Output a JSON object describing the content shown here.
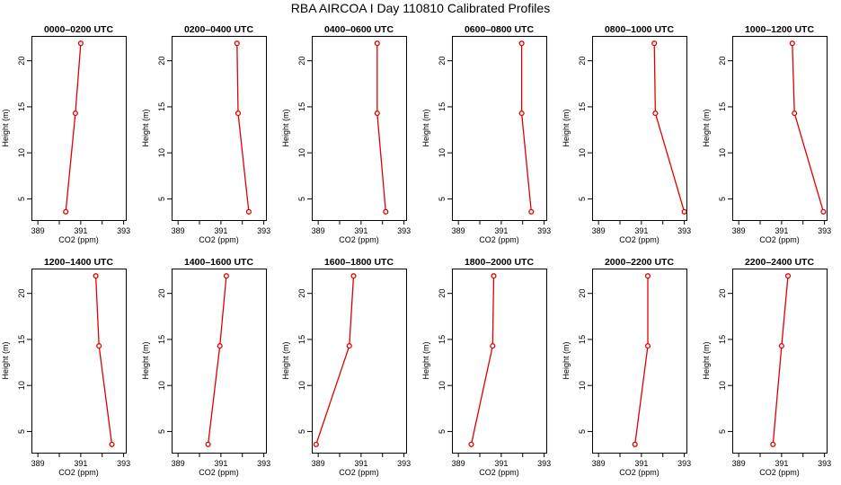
{
  "title": "RBA AIRCOA I  Day 110810  Calibrated Profiles",
  "colors": {
    "series": "#e00000",
    "axis": "#000000"
  },
  "axis_defaults": {
    "xlabel": "CO2 (ppm)",
    "ylabel": "Height (m)",
    "xlim": [
      388.7,
      393.1
    ],
    "ylim": [
      2.7,
      22.7
    ],
    "xticks": [
      389,
      390,
      391,
      392,
      393
    ],
    "xtick_labels": [
      "389",
      "",
      "391",
      "",
      "393"
    ],
    "yticks": [
      5,
      10,
      15,
      20
    ],
    "ytick_labels": [
      "5",
      "10",
      "15",
      "20"
    ]
  },
  "chart_data": [
    {
      "type": "line",
      "title": "0000–0200 UTC",
      "xlabel": "CO2 (ppm)",
      "ylabel": "Height (m)",
      "x": [
        390.3,
        390.75,
        391.0
      ],
      "y": [
        3.6,
        14.3,
        21.9
      ]
    },
    {
      "type": "line",
      "title": "0200–0400 UTC",
      "xlabel": "CO2 (ppm)",
      "ylabel": "Height (m)",
      "x": [
        392.3,
        391.8,
        391.75
      ],
      "y": [
        3.6,
        14.3,
        21.9
      ]
    },
    {
      "type": "line",
      "title": "0400–0600 UTC",
      "xlabel": "CO2 (ppm)",
      "ylabel": "Height (m)",
      "x": [
        392.15,
        391.75,
        391.75
      ],
      "y": [
        3.6,
        14.3,
        21.9
      ]
    },
    {
      "type": "line",
      "title": "0600–0800 UTC",
      "xlabel": "CO2 (ppm)",
      "ylabel": "Height (m)",
      "x": [
        392.4,
        391.95,
        391.95
      ],
      "y": [
        3.6,
        14.3,
        21.9
      ]
    },
    {
      "type": "line",
      "title": "0800–1000 UTC",
      "xlabel": "CO2 (ppm)",
      "ylabel": "Height (m)",
      "x": [
        393.0,
        391.65,
        391.6
      ],
      "y": [
        3.6,
        14.3,
        21.9
      ]
    },
    {
      "type": "line",
      "title": "1000–1200 UTC",
      "xlabel": "CO2 (ppm)",
      "ylabel": "Height (m)",
      "x": [
        392.95,
        391.6,
        391.5
      ],
      "y": [
        3.6,
        14.3,
        21.9
      ]
    },
    {
      "type": "line",
      "title": "1200–1400 UTC",
      "xlabel": "CO2 (ppm)",
      "ylabel": "Height (m)",
      "x": [
        392.45,
        391.85,
        391.7
      ],
      "y": [
        3.6,
        14.3,
        21.9
      ]
    },
    {
      "type": "line",
      "title": "1400–1600 UTC",
      "xlabel": "CO2 (ppm)",
      "ylabel": "Height (m)",
      "x": [
        390.4,
        390.95,
        391.25
      ],
      "y": [
        3.6,
        14.3,
        21.9
      ]
    },
    {
      "type": "line",
      "title": "1600–1800 UTC",
      "xlabel": "CO2 (ppm)",
      "ylabel": "Height (m)",
      "x": [
        388.9,
        390.45,
        390.65
      ],
      "y": [
        3.6,
        14.3,
        21.9
      ]
    },
    {
      "type": "line",
      "title": "1800–2000 UTC",
      "xlabel": "CO2 (ppm)",
      "ylabel": "Height (m)",
      "x": [
        389.6,
        390.6,
        390.65
      ],
      "y": [
        3.6,
        14.3,
        21.9
      ]
    },
    {
      "type": "line",
      "title": "2000–2200 UTC",
      "xlabel": "CO2 (ppm)",
      "ylabel": "Height (m)",
      "x": [
        390.7,
        391.3,
        391.3
      ],
      "y": [
        3.6,
        14.3,
        21.9
      ]
    },
    {
      "type": "line",
      "title": "2200–2400 UTC",
      "xlabel": "CO2 (ppm)",
      "ylabel": "Height (m)",
      "x": [
        390.6,
        391.0,
        391.3
      ],
      "y": [
        3.6,
        14.3,
        21.9
      ]
    }
  ]
}
